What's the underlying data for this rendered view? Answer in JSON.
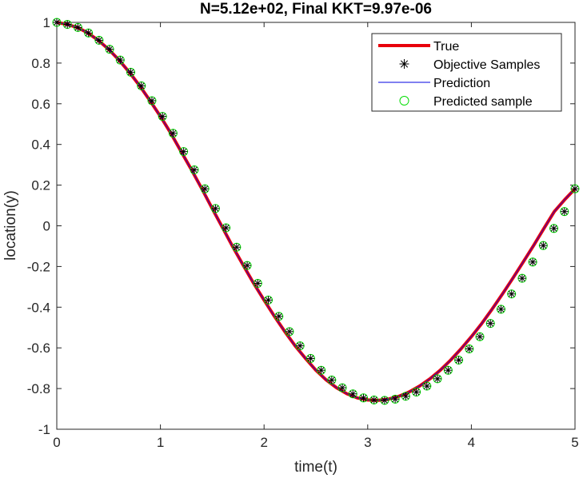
{
  "chart_data": {
    "type": "line",
    "title": "N=5.12e+02, Final KKT=9.97e-06",
    "xlabel": "time(t)",
    "ylabel": "location(y)",
    "xlim": [
      0,
      5
    ],
    "ylim": [
      -1,
      1
    ],
    "xticks": [
      0,
      1,
      2,
      3,
      4,
      5
    ],
    "xtick_labels": [
      "0",
      "1",
      "2",
      "3",
      "4",
      "5"
    ],
    "yticks": [
      -1,
      -0.8,
      -0.6,
      -0.4,
      -0.2,
      0,
      0.2,
      0.4,
      0.6,
      0.8,
      1
    ],
    "ytick_labels": [
      "-1",
      "-0.8",
      "-0.6",
      "-0.4",
      "-0.2",
      "0",
      "0.2",
      "0.4",
      "0.6",
      "0.8",
      "1"
    ],
    "grid": false,
    "legend_position": "top-right",
    "curve_x": [
      0,
      0.1,
      0.2,
      0.3,
      0.4,
      0.5,
      0.6,
      0.7,
      0.8,
      0.9,
      1.0,
      1.1,
      1.2,
      1.3,
      1.4,
      1.5,
      1.6,
      1.7,
      1.8,
      1.9,
      2.0,
      2.1,
      2.2,
      2.3,
      2.4,
      2.5,
      2.6,
      2.7,
      2.8,
      2.9,
      3.0,
      3.1,
      3.2,
      3.3,
      3.4,
      3.5,
      3.6,
      3.7,
      3.8,
      3.9,
      4.0,
      4.1,
      4.2,
      4.3,
      4.4,
      4.5,
      4.6,
      4.7,
      4.8,
      4.9,
      5.0
    ],
    "curve_y": [
      1.0,
      0.99,
      0.975,
      0.948,
      0.912,
      0.868,
      0.815,
      0.755,
      0.688,
      0.615,
      0.538,
      0.455,
      0.365,
      0.275,
      0.182,
      0.085,
      -0.01,
      -0.105,
      -0.195,
      -0.283,
      -0.365,
      -0.445,
      -0.52,
      -0.59,
      -0.652,
      -0.71,
      -0.758,
      -0.796,
      -0.826,
      -0.846,
      -0.856,
      -0.858,
      -0.852,
      -0.838,
      -0.817,
      -0.788,
      -0.752,
      -0.71,
      -0.66,
      -0.605,
      -0.545,
      -0.48,
      -0.41,
      -0.335,
      -0.258,
      -0.178,
      -0.097,
      -0.013,
      0.07,
      0.128,
      0.182
    ],
    "sample_x": [
      0,
      0.102,
      0.204,
      0.306,
      0.408,
      0.51,
      0.612,
      0.714,
      0.816,
      0.918,
      1.02,
      1.122,
      1.224,
      1.327,
      1.429,
      1.531,
      1.633,
      1.735,
      1.837,
      1.939,
      2.041,
      2.143,
      2.245,
      2.347,
      2.449,
      2.551,
      2.653,
      2.755,
      2.857,
      2.959,
      3.061,
      3.163,
      3.265,
      3.367,
      3.469,
      3.571,
      3.673,
      3.776,
      3.878,
      3.98,
      4.082,
      4.184,
      4.286,
      4.388,
      4.49,
      4.592,
      4.694,
      4.796,
      4.898,
      5.0
    ],
    "sample_y": [
      1.0,
      0.99,
      0.975,
      0.948,
      0.912,
      0.868,
      0.815,
      0.755,
      0.688,
      0.615,
      0.538,
      0.455,
      0.365,
      0.275,
      0.182,
      0.085,
      -0.01,
      -0.105,
      -0.195,
      -0.283,
      -0.365,
      -0.445,
      -0.52,
      -0.59,
      -0.652,
      -0.71,
      -0.758,
      -0.796,
      -0.826,
      -0.846,
      -0.856,
      -0.858,
      -0.852,
      -0.838,
      -0.817,
      -0.788,
      -0.752,
      -0.71,
      -0.66,
      -0.605,
      -0.545,
      -0.48,
      -0.41,
      -0.335,
      -0.258,
      -0.178,
      -0.097,
      -0.013,
      0.07,
      0.182
    ],
    "series": [
      {
        "name": "True",
        "style": "line",
        "color": "#e8000b"
      },
      {
        "name": "Objective Samples",
        "style": "asterisk-marker",
        "color": "#000000"
      },
      {
        "name": "Prediction",
        "style": "line",
        "color": "#0000e0"
      },
      {
        "name": "Predicted sample",
        "style": "circle-marker",
        "color": "#00dd00"
      }
    ]
  }
}
